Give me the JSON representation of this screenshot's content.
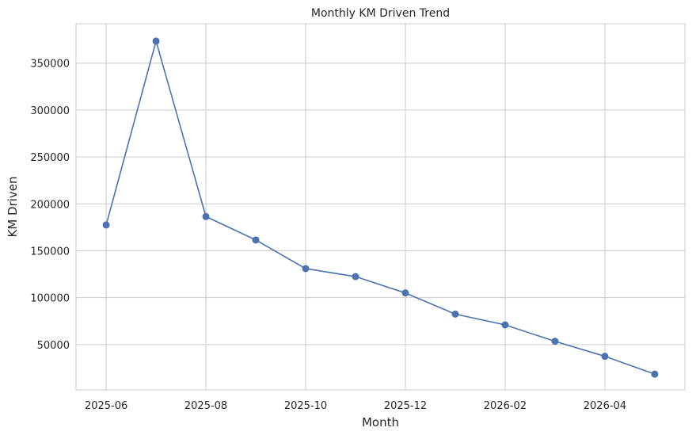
{
  "chart_data": {
    "type": "line",
    "title": "Monthly KM Driven Trend",
    "xlabel": "Month",
    "ylabel": "KM Driven",
    "x": [
      "2025-06",
      "2025-07",
      "2025-08",
      "2025-09",
      "2025-10",
      "2025-11",
      "2025-12",
      "2026-01",
      "2026-02",
      "2026-03",
      "2026-04",
      "2026-05"
    ],
    "series": [
      {
        "values": [
          177500,
          373500,
          186500,
          161500,
          131000,
          122500,
          105000,
          82500,
          71000,
          53500,
          37500,
          18500
        ],
        "color": "#4c72b0",
        "marker": "circle"
      }
    ],
    "x_ticks": [
      "2025-06",
      "2025-08",
      "2025-10",
      "2025-12",
      "2026-02",
      "2026-04"
    ],
    "y_ticks": [
      50000,
      100000,
      150000,
      200000,
      250000,
      300000,
      350000
    ],
    "y_tick_labels": [
      "50000",
      "100000",
      "150000",
      "200000",
      "250000",
      "300000",
      "350000"
    ],
    "ylim": [
      1720,
      392000
    ],
    "grid": true,
    "grid_color": "#cccccc",
    "axis_color": "#cccccc",
    "text_color": "#262626"
  }
}
